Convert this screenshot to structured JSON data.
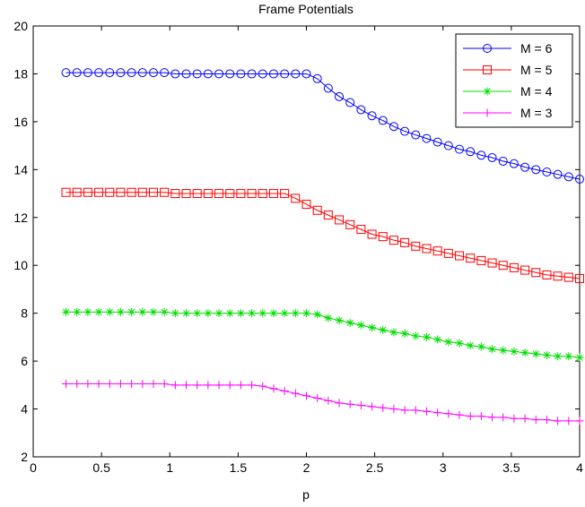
{
  "chart_data": {
    "type": "line",
    "title": "Frame Potentials",
    "xlabel": "p",
    "ylabel": "",
    "xlim": [
      0,
      4
    ],
    "ylim": [
      2,
      20
    ],
    "xticks": [
      0,
      0.5,
      1,
      1.5,
      2,
      2.5,
      3,
      3.5,
      4
    ],
    "xtick_labels": [
      "0",
      "0.5",
      "1",
      "1.5",
      "2",
      "2.5",
      "3",
      "3.5",
      "4"
    ],
    "yticks": [
      2,
      4,
      6,
      8,
      10,
      12,
      14,
      16,
      18,
      20
    ],
    "ytick_labels": [
      "2",
      "4",
      "6",
      "8",
      "10",
      "12",
      "14",
      "16",
      "18",
      "20"
    ],
    "grid": false,
    "legend_position": "top-right",
    "x": [
      0.24,
      0.32,
      0.4,
      0.48,
      0.56,
      0.64,
      0.72,
      0.8,
      0.88,
      0.96,
      1.04,
      1.12,
      1.2,
      1.28,
      1.36,
      1.44,
      1.52,
      1.6,
      1.68,
      1.76,
      1.84,
      1.92,
      2.0,
      2.08,
      2.16,
      2.24,
      2.32,
      2.4,
      2.48,
      2.56,
      2.64,
      2.72,
      2.8,
      2.88,
      2.96,
      3.04,
      3.12,
      3.2,
      3.28,
      3.36,
      3.44,
      3.52,
      3.6,
      3.68,
      3.76,
      3.84,
      3.92,
      4.0
    ],
    "series": [
      {
        "name": "M = 6",
        "color": "#0000ff",
        "marker": "circle",
        "values": [
          18.05,
          18.05,
          18.05,
          18.05,
          18.05,
          18.05,
          18.05,
          18.05,
          18.05,
          18.05,
          18.0,
          18.0,
          18.0,
          18.0,
          18.0,
          18.0,
          18.0,
          18.0,
          18.0,
          18.0,
          18.0,
          18.0,
          18.0,
          17.8,
          17.4,
          17.05,
          16.8,
          16.5,
          16.25,
          16.05,
          15.8,
          15.6,
          15.45,
          15.3,
          15.15,
          15.0,
          14.85,
          14.75,
          14.6,
          14.5,
          14.35,
          14.25,
          14.1,
          14.0,
          13.9,
          13.8,
          13.7,
          13.6
        ]
      },
      {
        "name": "M = 5",
        "color": "#ff0000",
        "marker": "square",
        "values": [
          13.05,
          13.05,
          13.05,
          13.05,
          13.05,
          13.05,
          13.05,
          13.05,
          13.05,
          13.05,
          13.0,
          13.0,
          13.0,
          13.0,
          13.0,
          13.0,
          13.0,
          13.0,
          13.0,
          13.0,
          13.0,
          12.8,
          12.55,
          12.3,
          12.1,
          11.9,
          11.7,
          11.5,
          11.3,
          11.2,
          11.05,
          10.95,
          10.8,
          10.7,
          10.6,
          10.5,
          10.4,
          10.3,
          10.2,
          10.1,
          10.0,
          9.9,
          9.8,
          9.7,
          9.6,
          9.55,
          9.5,
          9.45
        ]
      },
      {
        "name": "M = 4",
        "color": "#00dd00",
        "marker": "star",
        "values": [
          8.05,
          8.05,
          8.05,
          8.05,
          8.05,
          8.05,
          8.05,
          8.05,
          8.05,
          8.05,
          8.0,
          8.0,
          8.0,
          8.0,
          8.0,
          8.0,
          8.0,
          8.0,
          8.0,
          8.0,
          8.0,
          8.0,
          8.0,
          7.95,
          7.8,
          7.7,
          7.6,
          7.5,
          7.4,
          7.3,
          7.2,
          7.15,
          7.05,
          7.0,
          6.9,
          6.8,
          6.75,
          6.65,
          6.6,
          6.5,
          6.45,
          6.4,
          6.35,
          6.3,
          6.25,
          6.2,
          6.2,
          6.15
        ]
      },
      {
        "name": "M = 3",
        "color": "#ff00ff",
        "marker": "plus",
        "values": [
          5.05,
          5.05,
          5.05,
          5.05,
          5.05,
          5.05,
          5.05,
          5.05,
          5.05,
          5.05,
          5.0,
          5.0,
          5.0,
          5.0,
          5.0,
          5.0,
          5.0,
          5.0,
          4.95,
          4.85,
          4.75,
          4.65,
          4.55,
          4.45,
          4.35,
          4.25,
          4.2,
          4.15,
          4.1,
          4.05,
          4.0,
          3.95,
          3.95,
          3.9,
          3.85,
          3.8,
          3.75,
          3.7,
          3.7,
          3.65,
          3.65,
          3.6,
          3.6,
          3.55,
          3.55,
          3.5,
          3.5,
          3.5
        ]
      }
    ]
  }
}
